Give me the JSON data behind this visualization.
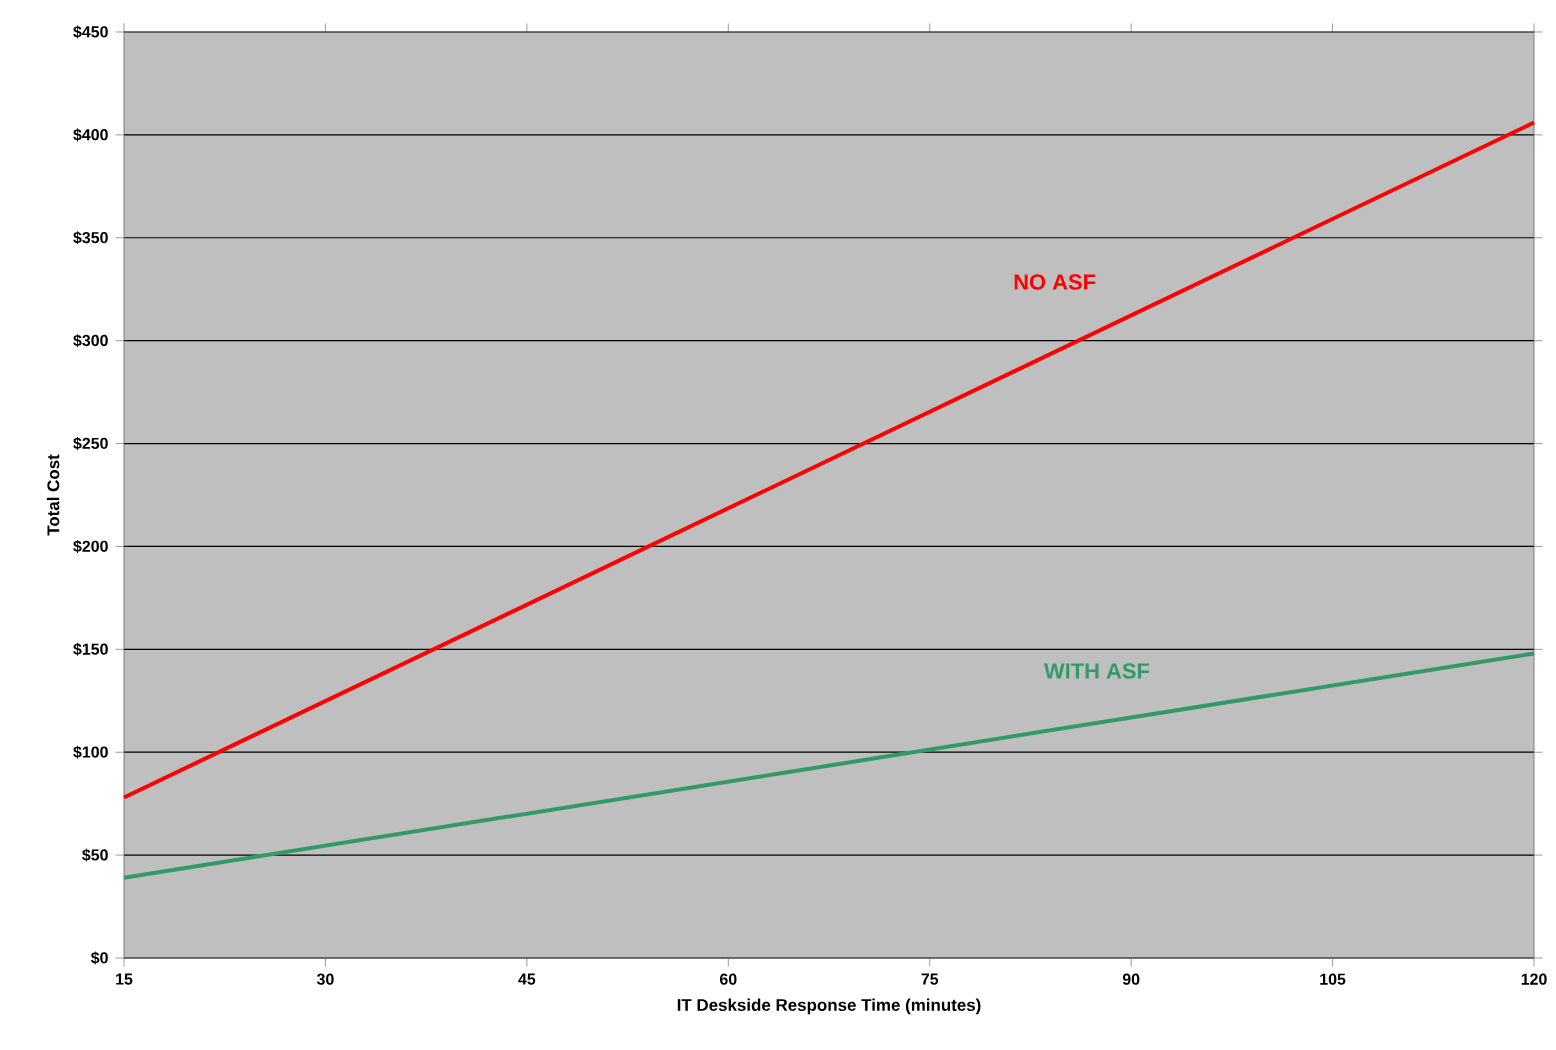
{
  "chart_data": {
    "type": "line",
    "xlabel": "IT Deskside Response Time (minutes)",
    "ylabel": "Total Cost",
    "xlim": [
      15,
      120
    ],
    "xticks": [
      15,
      30,
      45,
      60,
      75,
      90,
      105,
      120
    ],
    "ylim": [
      0,
      450
    ],
    "yticks": [
      {
        "value": 0,
        "label": "$0"
      },
      {
        "value": 50,
        "label": "$50"
      },
      {
        "value": 100,
        "label": "$100"
      },
      {
        "value": 150,
        "label": "$150"
      },
      {
        "value": 200,
        "label": "$200"
      },
      {
        "value": 250,
        "label": "$250"
      },
      {
        "value": 300,
        "label": "$300"
      },
      {
        "value": 350,
        "label": "$350"
      },
      {
        "value": 400,
        "label": "$400"
      },
      {
        "value": 450,
        "label": "$450"
      }
    ],
    "x": [
      15,
      120
    ],
    "grid": "y",
    "legend": false,
    "marker": "none",
    "line_style": "solid",
    "series": [
      {
        "name": "NO ASF",
        "color": "#ff0000",
        "values": [
          78,
          406
        ]
      },
      {
        "name": "WITH ASF",
        "color": "#339966",
        "values": [
          39,
          148
        ]
      }
    ]
  }
}
